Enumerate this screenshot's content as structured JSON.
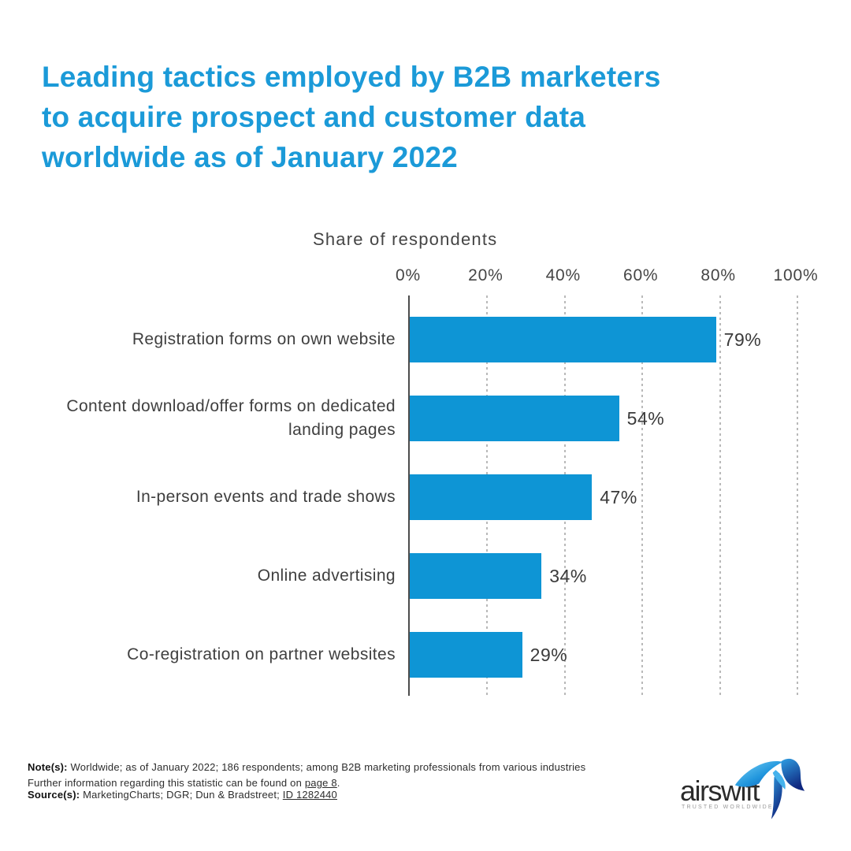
{
  "page": {
    "background": "#ffffff"
  },
  "title": {
    "lines": [
      "Leading tactics employed by B2B marketers",
      "to acquire prospect and customer data",
      "worldwide as of January 2022"
    ],
    "color": "#1b9ad8"
  },
  "chart_data": {
    "type": "bar",
    "orientation": "horizontal",
    "title": "Share of respondents",
    "categories": [
      "Registration forms on own website",
      "Content download/offer forms on dedicated landing pages",
      "In-person events and trade shows",
      "Online advertising",
      "Co-registration on partner websites"
    ],
    "values": [
      79,
      54,
      47,
      34,
      29
    ],
    "value_labels": [
      "79%",
      "54%",
      "47%",
      "34%",
      "29%"
    ],
    "unit": "%",
    "xlim": [
      0,
      100
    ],
    "x_tick_labels": [
      "0%",
      "20%",
      "40%",
      "60%",
      "80%",
      "100%"
    ],
    "grid": "vertical dashed gridlines at 20% intervals",
    "legend": "none",
    "bar_color": "#0e95d5",
    "axis_line_color": "#4c4c4c"
  },
  "notes": {
    "note_label": "Note(s):",
    "note_text": " Worldwide; as of January 2022; 186 respondents; among B2B marketing professionals from various industries",
    "further_prefix": "Further information regarding this statistic can be found on ",
    "further_link": "page 8",
    "further_suffix": ".",
    "source_label": "Source(s):",
    "source_text": " MarketingCharts; DGR; Dun & Bradstreet; ",
    "source_link": "ID 1282440"
  },
  "logo": {
    "name": "airswift",
    "tagline": "TRUSTED WORLDWIDE"
  }
}
